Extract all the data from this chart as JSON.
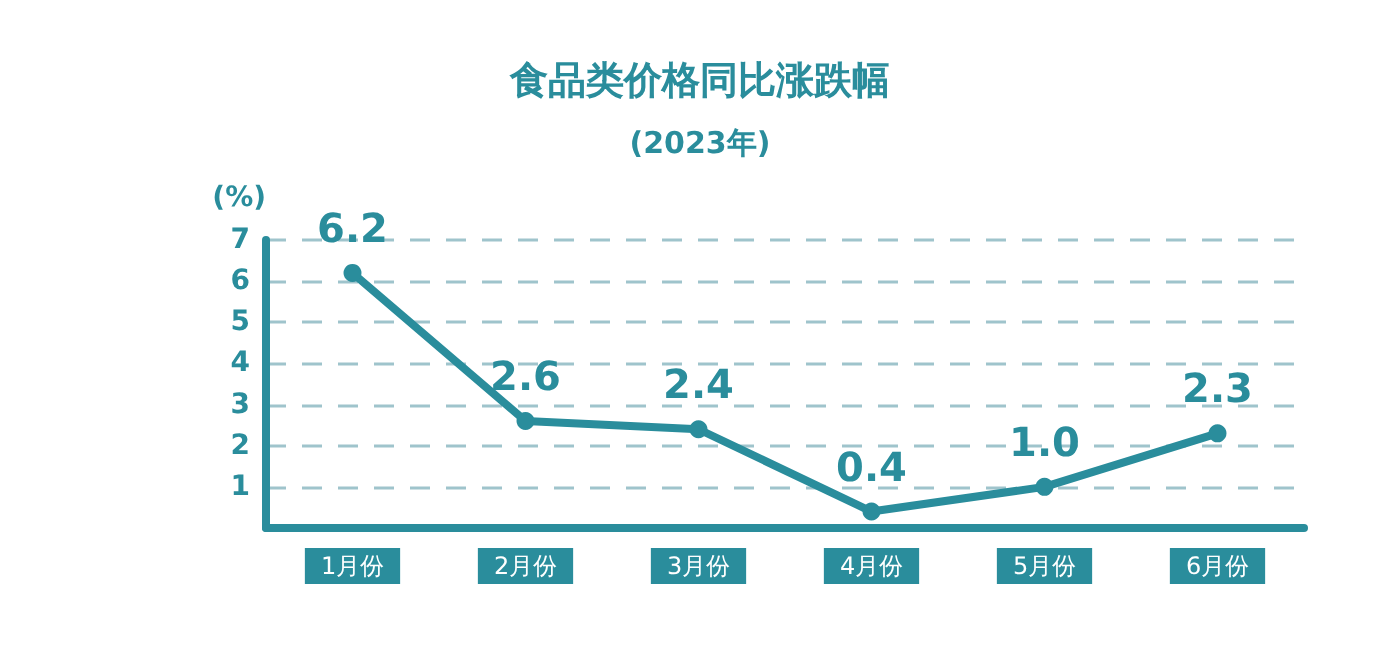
{
  "chart_data": {
    "type": "line",
    "title": "食品类价格同比涨跌幅",
    "subtitle": "(2023年)",
    "ylabel": "(%)",
    "categories": [
      "1月份",
      "2月份",
      "3月份",
      "4月份",
      "5月份",
      "6月份"
    ],
    "series": [
      {
        "color": "#2a8d9c",
        "values": [
          6.2,
          2.6,
          2.4,
          0.4,
          1.0,
          2.3
        ],
        "value_labels": [
          "6.2",
          "2.6",
          "2.4",
          "0.4",
          "1.0",
          "2.3"
        ]
      }
    ],
    "ylim": [
      0,
      7
    ],
    "yticks": [
      1,
      2,
      3,
      4,
      5,
      6,
      7
    ],
    "grid": "y",
    "marker": "circle",
    "line_style": "solid"
  }
}
